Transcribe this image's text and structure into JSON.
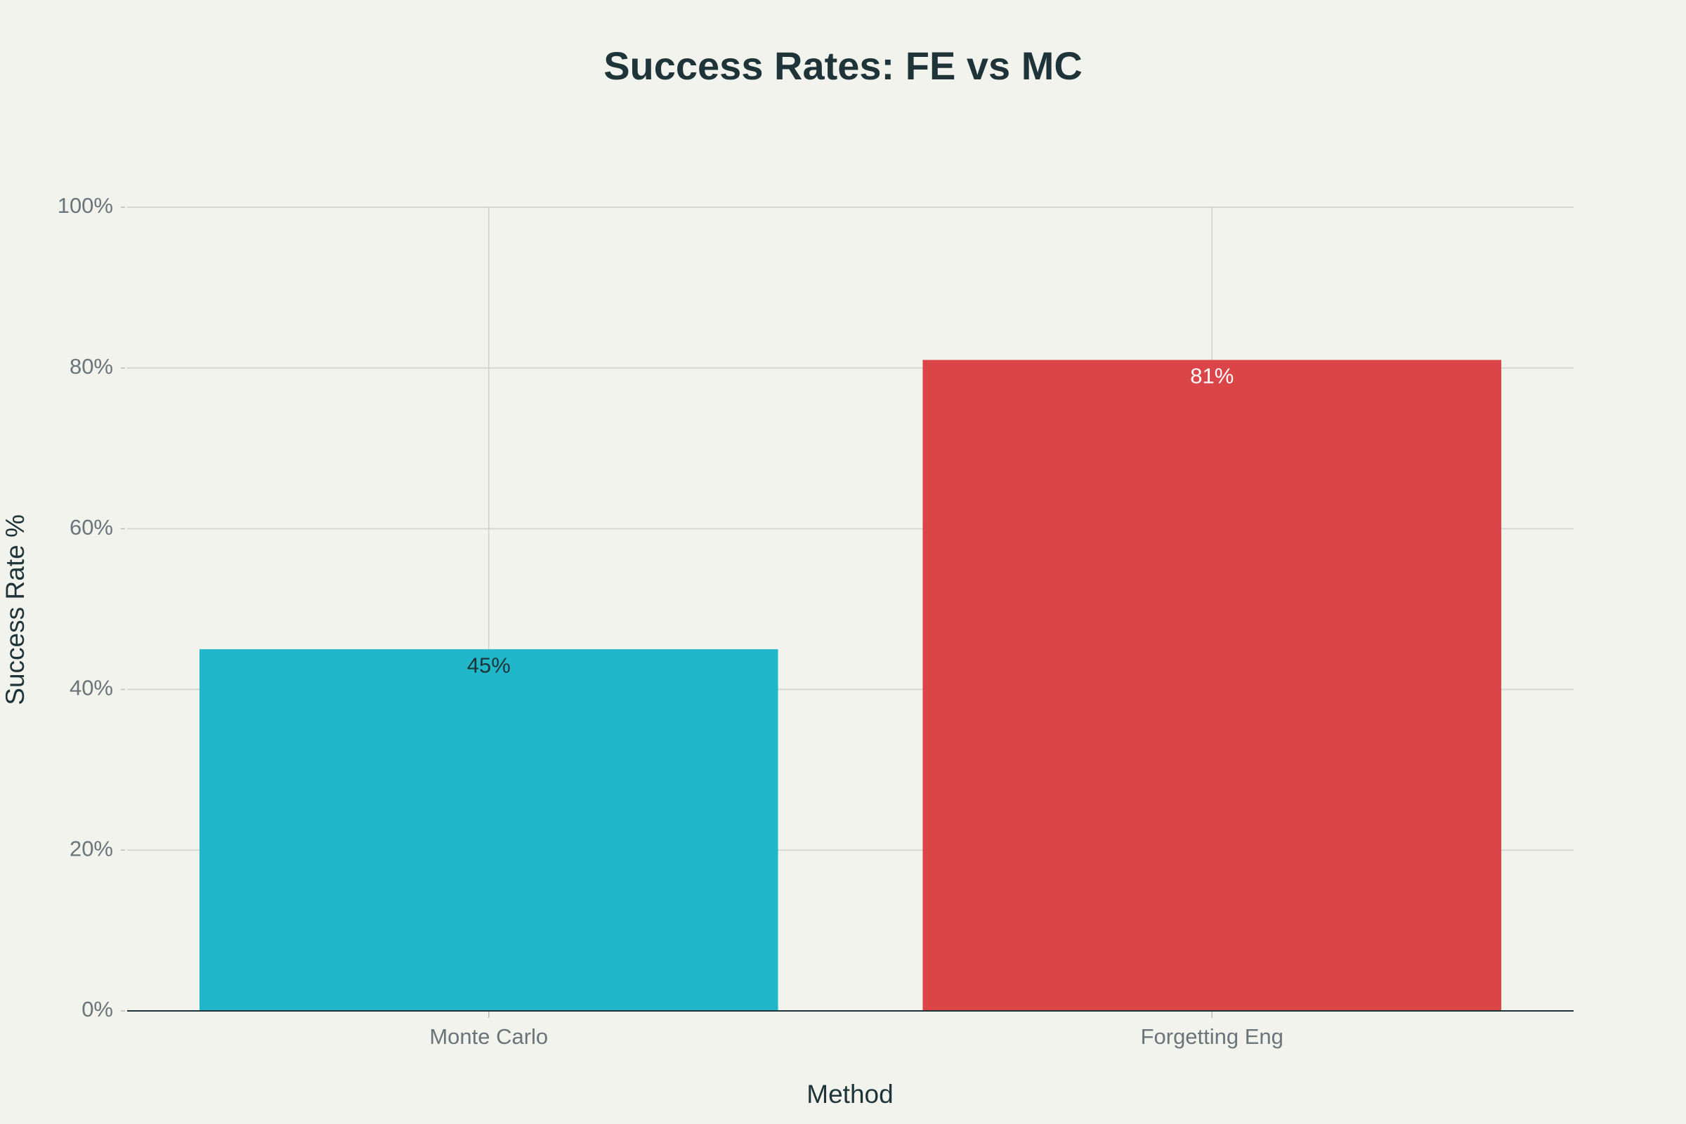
{
  "chart_data": {
    "type": "bar",
    "title": "Success Rates: FE vs MC",
    "x_label": "Method",
    "y_label": "Success Rate %",
    "categories": [
      "Monte Carlo",
      "Forgetting Eng"
    ],
    "values": [
      45,
      81
    ],
    "value_labels": [
      "45%",
      "81%"
    ],
    "colors": [
      "#21b7cb",
      "#db4547"
    ],
    "ylim": [
      0,
      100
    ],
    "yticks": [
      {
        "value": 0,
        "label": "0%"
      },
      {
        "value": 20,
        "label": "20%"
      },
      {
        "value": 40,
        "label": "40%"
      },
      {
        "value": 60,
        "label": "60%"
      },
      {
        "value": 80,
        "label": "80%"
      },
      {
        "value": 100,
        "label": "100%"
      }
    ],
    "grid": true
  }
}
